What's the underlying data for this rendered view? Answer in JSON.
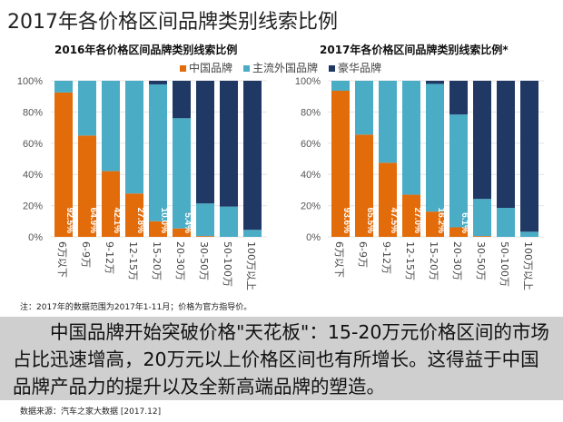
{
  "page_title": "2017年各价格区间品牌类别线索比例",
  "legend": [
    {
      "name": "中国品牌",
      "color": "#e36c0a"
    },
    {
      "name": "主流外国品牌",
      "color": "#4bacc6"
    },
    {
      "name": "豪华品牌",
      "color": "#1f3864"
    }
  ],
  "chart_data": [
    {
      "type": "bar",
      "stacked": true,
      "title": "2016年各价格区间品牌类别线索比例",
      "categories": [
        "6万以下",
        "6-9万",
        "9-12万",
        "12-15万",
        "15-20万",
        "20-30万",
        "30-50万",
        "50-100万",
        "100万以上"
      ],
      "ylim": [
        0,
        100
      ],
      "yticks": [
        "0%",
        "20%",
        "40%",
        "60%",
        "80%",
        "100%"
      ],
      "series": [
        {
          "name": "中国品牌",
          "values": [
            92.5,
            64.9,
            42.1,
            27.8,
            10.0,
            5.4,
            0.5,
            0,
            0
          ]
        },
        {
          "name": "主流外国品牌",
          "values": [
            7.5,
            35.1,
            57.9,
            72.2,
            87.7,
            70.6,
            20.9,
            19.4,
            4.5
          ]
        },
        {
          "name": "豪华品牌",
          "values": [
            0,
            0,
            0,
            0,
            2.3,
            24.0,
            78.6,
            80.6,
            95.5
          ]
        }
      ],
      "data_labels": [
        "92.5%",
        "64.9%",
        "42.1%",
        "27.8%",
        "10.0%",
        "5.4%"
      ]
    },
    {
      "type": "bar",
      "stacked": true,
      "title": "2017年各价格区间品牌类别线索比例*",
      "categories": [
        "6万以下",
        "6-9万",
        "9-12万",
        "12-15万",
        "15-20万",
        "20-30万",
        "30-50万",
        "50-100万",
        "100万以上"
      ],
      "ylim": [
        0,
        100
      ],
      "yticks": [
        "0%",
        "20%",
        "40%",
        "60%",
        "80%",
        "100%"
      ],
      "series": [
        {
          "name": "中国品牌",
          "values": [
            93.6,
            65.5,
            47.5,
            27.0,
            16.2,
            6.1,
            0.5,
            0,
            0
          ]
        },
        {
          "name": "主流外国品牌",
          "values": [
            6.4,
            34.5,
            52.5,
            73.0,
            81.8,
            72.3,
            23.8,
            18.6,
            3.3
          ]
        },
        {
          "name": "豪华品牌",
          "values": [
            0,
            0,
            0,
            0,
            2.0,
            21.6,
            75.7,
            81.4,
            96.7
          ]
        }
      ],
      "data_labels": [
        "93.6%",
        "65.5%",
        "47.5%",
        "27.0%",
        "16.2%",
        "6.1%"
      ]
    }
  ],
  "note": "注：2017年的数据范围为2017年1-11月；价格为官方指导价。",
  "summary": "中国品牌开始突破价格\"天花板\"：15-20万元价格区间的市场占比迅速增高，20万元以上价格区间也有所增长。这得益于中国品牌产品力的提升以及全新高端品牌的塑造。",
  "source": "数据来源：汽车之家大数据  [2017.12]"
}
